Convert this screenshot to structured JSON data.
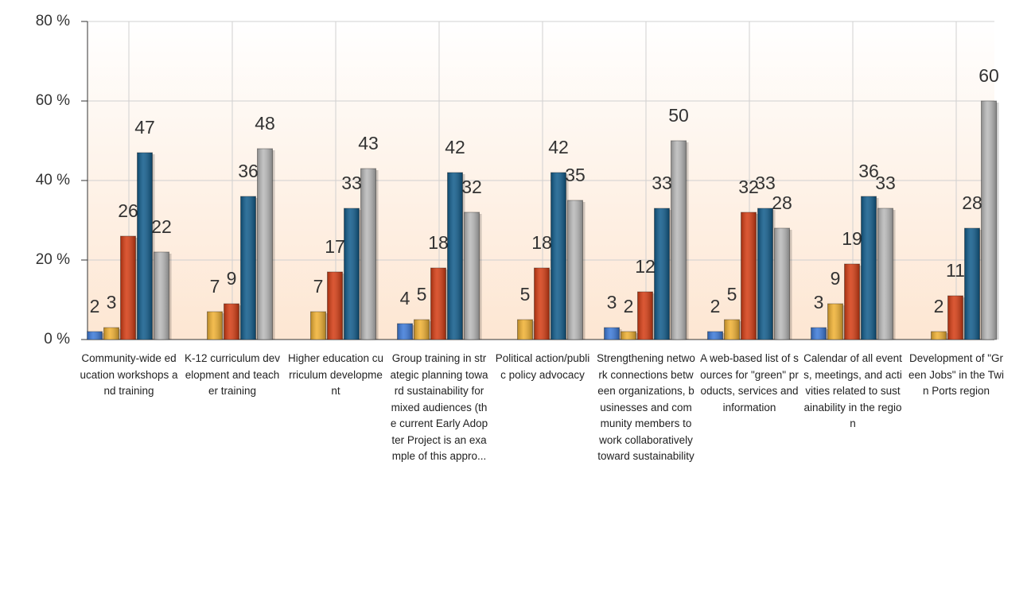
{
  "chart_data": {
    "type": "bar",
    "categories": [
      "Community-wide education workshops and training",
      "K-12 curriculum development and teacher training",
      "Higher education curriculum development",
      "Group training in strategic planning toward sustainability for mixed audiences (the current Early Adopter Project is an example of this appro...",
      "Political action/public policy advocacy",
      "Strengthening network connections between organizations, businesses and community members to work collaboratively toward sustainability",
      "A web-based list of sources for \"green\" products, services and information",
      "Calendar of all events, meetings, and activities related to sustainability in the region",
      "Development of \"Green Jobs\" in the Twin Ports region"
    ],
    "series": [
      {
        "color": "#3a78d8",
        "values": [
          2,
          null,
          null,
          4,
          null,
          3,
          2,
          3,
          null
        ]
      },
      {
        "color": "#f0b030",
        "values": [
          3,
          7,
          7,
          5,
          5,
          2,
          5,
          9,
          2
        ]
      },
      {
        "color": "#d43a10",
        "values": [
          26,
          9,
          17,
          18,
          18,
          12,
          32,
          19,
          11
        ]
      },
      {
        "color": "#0e5a8a",
        "values": [
          47,
          36,
          33,
          42,
          42,
          33,
          33,
          36,
          28
        ]
      },
      {
        "color": "#b8b8b8",
        "values": [
          22,
          48,
          43,
          32,
          35,
          50,
          28,
          33,
          60
        ]
      }
    ],
    "ylim": [
      0,
      80
    ],
    "yticks": [
      {
        "value": 0,
        "label": "0 %"
      },
      {
        "value": 20,
        "label": "20 %"
      },
      {
        "value": 40,
        "label": "40 %"
      },
      {
        "value": 60,
        "label": "60 %"
      },
      {
        "value": 80,
        "label": "80 %"
      }
    ],
    "grid": true
  }
}
